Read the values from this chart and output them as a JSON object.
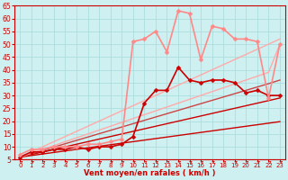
{
  "xlabel": "Vent moyen/en rafales ( km/h )",
  "xlim": [
    -0.5,
    23.5
  ],
  "ylim": [
    5,
    65
  ],
  "yticks": [
    5,
    10,
    15,
    20,
    25,
    30,
    35,
    40,
    45,
    50,
    55,
    60,
    65
  ],
  "xticks": [
    0,
    1,
    2,
    3,
    4,
    5,
    6,
    7,
    8,
    9,
    10,
    11,
    12,
    13,
    14,
    15,
    16,
    17,
    18,
    19,
    20,
    21,
    22,
    23
  ],
  "bg_color": "#cff0f0",
  "grid_color": "#aadddd",
  "lines": [
    {
      "x": [
        0,
        1,
        2,
        3,
        4,
        5,
        6,
        7,
        8,
        9,
        10,
        11,
        12,
        13,
        14,
        15,
        16,
        17,
        18,
        19,
        20,
        21,
        22,
        23
      ],
      "y": [
        6,
        6.6,
        7.2,
        7.8,
        8.4,
        9,
        9.6,
        10.2,
        10.8,
        11.4,
        12,
        12.6,
        13.2,
        13.8,
        14.4,
        15,
        15.6,
        16.2,
        16.8,
        17.4,
        18,
        18.6,
        19.2,
        19.8
      ],
      "color": "#cc0000",
      "lw": 1.0,
      "marker": null
    },
    {
      "x": [
        0,
        1,
        2,
        3,
        4,
        5,
        6,
        7,
        8,
        9,
        10,
        11,
        12,
        13,
        14,
        15,
        16,
        17,
        18,
        19,
        20,
        21,
        22,
        23
      ],
      "y": [
        6,
        7,
        8,
        9,
        10,
        11,
        12,
        13,
        14,
        15,
        16,
        17,
        18,
        19,
        20,
        21,
        22,
        23,
        24,
        25,
        26,
        27,
        28,
        29
      ],
      "color": "#cc0000",
      "lw": 1.0,
      "marker": null
    },
    {
      "x": [
        0,
        1,
        2,
        3,
        4,
        5,
        6,
        7,
        8,
        9,
        10,
        11,
        12,
        13,
        14,
        15,
        16,
        17,
        18,
        19,
        20,
        21,
        22,
        23
      ],
      "y": [
        6,
        7.3,
        8.6,
        9.9,
        11.2,
        12.5,
        13.8,
        15.1,
        16.4,
        17.7,
        19,
        20.3,
        21.6,
        22.9,
        24.2,
        25.5,
        26.8,
        28.1,
        29.4,
        30.7,
        32,
        33.3,
        34.6,
        36
      ],
      "color": "#cc4444",
      "lw": 1.0,
      "marker": null
    },
    {
      "x": [
        0,
        1,
        2,
        3,
        4,
        5,
        6,
        7,
        8,
        9,
        10,
        11,
        12,
        13,
        14,
        15,
        16,
        17,
        18,
        19,
        20,
        21,
        22,
        23
      ],
      "y": [
        6,
        8,
        10,
        12,
        14,
        16,
        18,
        20,
        22,
        24,
        26,
        28,
        30,
        32,
        34,
        36,
        38,
        40,
        42,
        44,
        46,
        48,
        50,
        52
      ],
      "color": "#ffaaaa",
      "lw": 1.0,
      "marker": null
    },
    {
      "x": [
        0,
        1,
        2,
        3,
        4,
        5,
        6,
        7,
        8,
        9,
        10,
        11,
        12,
        13,
        14,
        15,
        16,
        17,
        18,
        19,
        20,
        21,
        22,
        23
      ],
      "y": [
        6,
        7.5,
        9,
        10.5,
        12,
        13.5,
        15,
        16.5,
        18,
        19.5,
        21,
        22.5,
        24,
        25.5,
        27,
        28.5,
        30,
        31.5,
        33,
        34.5,
        36,
        37.5,
        39,
        50
      ],
      "color": "#ffaaaa",
      "lw": 1.0,
      "marker": null
    },
    {
      "x": [
        0,
        1,
        2,
        3,
        4,
        5,
        6,
        7,
        8,
        9,
        10,
        11,
        12,
        13,
        14,
        15,
        16,
        17,
        18,
        19,
        20,
        21,
        22,
        23
      ],
      "y": [
        6,
        8,
        8,
        9,
        9,
        10,
        9,
        10,
        10,
        11,
        14,
        27,
        32,
        32,
        41,
        36,
        35,
        36,
        36,
        35,
        31,
        32,
        30,
        30
      ],
      "color": "#cc0000",
      "lw": 1.2,
      "marker": "D",
      "ms": 2.5
    },
    {
      "x": [
        0,
        1,
        2,
        3,
        4,
        5,
        6,
        7,
        8,
        9,
        10,
        11,
        12,
        13,
        14,
        15,
        16,
        17,
        18,
        19,
        20,
        21,
        22,
        23
      ],
      "y": [
        7,
        9,
        9,
        10,
        10,
        10,
        11,
        11,
        12,
        13,
        51,
        52,
        55,
        47,
        63,
        62,
        44,
        57,
        56,
        52,
        52,
        51,
        29,
        50
      ],
      "color": "#ff8888",
      "lw": 1.2,
      "marker": "D",
      "ms": 2.5
    }
  ],
  "axis_color": "#cc0000",
  "tick_color": "#cc0000",
  "label_color": "#cc0000",
  "tick_fontsize_x": 5.0,
  "tick_fontsize_y": 5.5,
  "label_fontsize": 6.0
}
